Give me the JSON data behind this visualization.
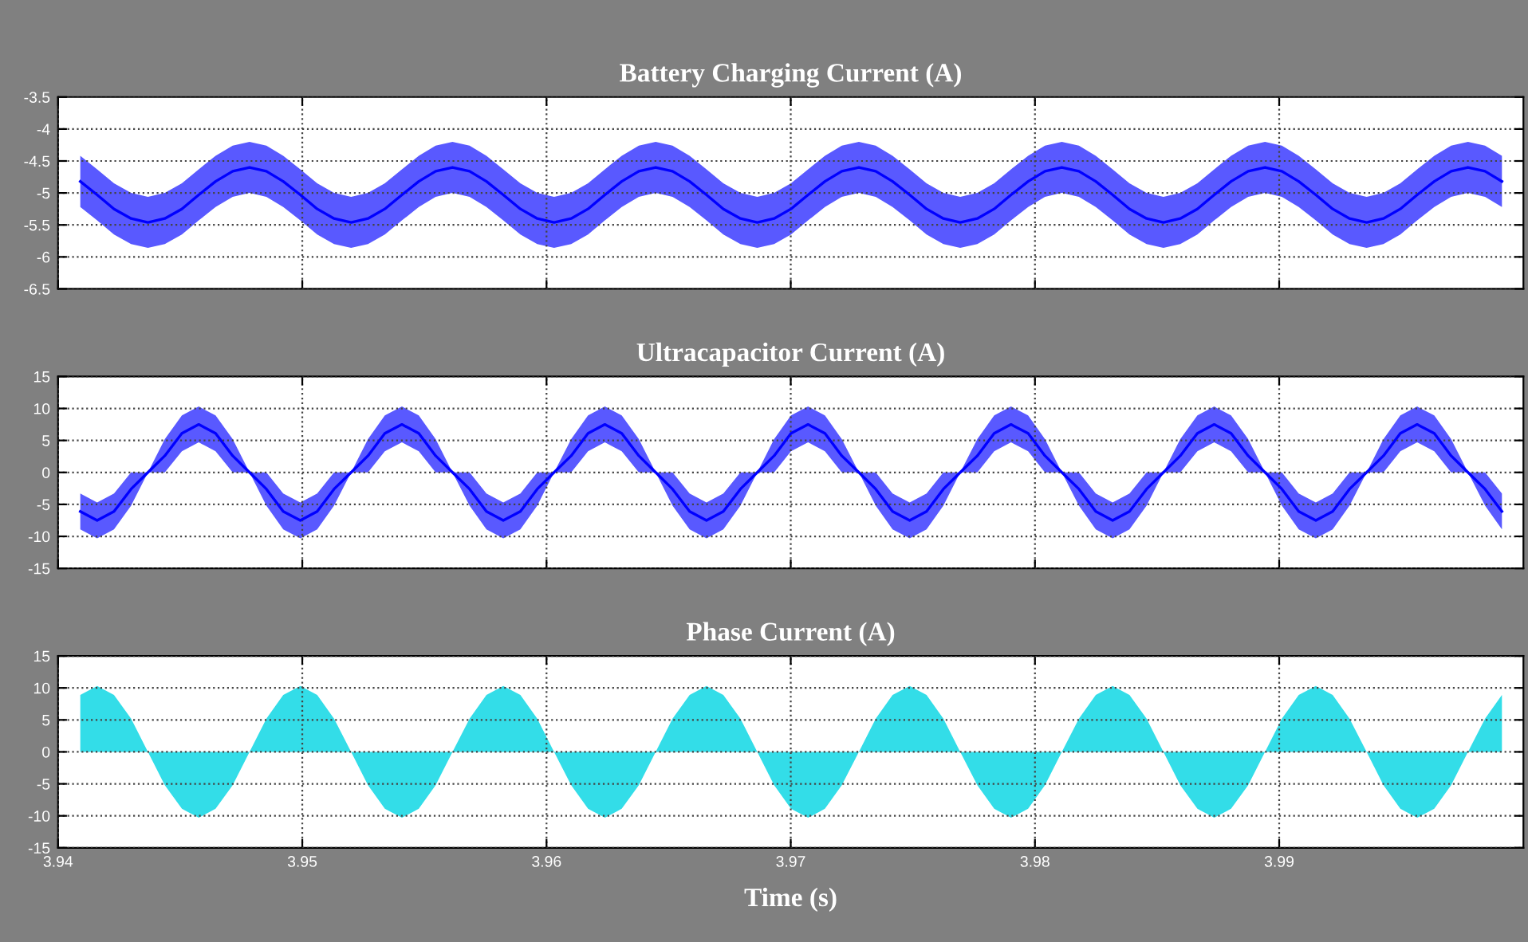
{
  "chart_data": [
    {
      "type": "line",
      "title": "Battery Charging Current (A)",
      "xlim": [
        3.94,
        4.0
      ],
      "xticks": [
        3.94,
        3.95,
        3.96,
        3.97,
        3.98,
        3.99
      ],
      "ylim": [
        -6.5,
        -3.5
      ],
      "yticks": [
        -6.5,
        -6,
        -5.5,
        -5,
        -4.5,
        -4,
        -3.5
      ],
      "grid": true,
      "tick_labels": "y",
      "x": [
        3.94091,
        3.9416,
        3.94229,
        3.94299,
        3.94368,
        3.94437,
        3.94507,
        3.94576,
        3.94645,
        3.94715,
        3.94784,
        3.94853,
        3.94922,
        3.94992,
        3.95061,
        3.9513,
        3.952,
        3.95269,
        3.95338,
        3.95408,
        3.95477,
        3.95546,
        3.95615,
        3.95685,
        3.95754,
        3.95823,
        3.95893,
        3.95962,
        3.96031,
        3.96101,
        3.9617,
        3.96239,
        3.96308,
        3.96378,
        3.96447,
        3.96516,
        3.96586,
        3.96655,
        3.96724,
        3.96794,
        3.96863,
        3.96932,
        3.97001,
        3.97071,
        3.9714,
        3.97209,
        3.97279,
        3.97348,
        3.97417,
        3.97487,
        3.97556,
        3.97625,
        3.97694,
        3.97764,
        3.97833,
        3.97902,
        3.97972,
        3.98041,
        3.9811,
        3.9818,
        3.98249,
        3.98318,
        3.98387,
        3.98457,
        3.98526,
        3.98595,
        3.98665,
        3.98734,
        3.98803,
        3.98873,
        3.98942,
        3.99011,
        3.9908,
        3.9915,
        3.99219,
        3.99288,
        3.99358,
        3.99427,
        3.99496,
        3.99565,
        3.99635,
        3.99704,
        3.99773,
        3.99843,
        3.99912
      ],
      "series": [
        {
          "color": "#0000ff",
          "values": [
            -4.82,
            -5.03,
            -5.25,
            -5.4,
            -5.46,
            -5.4,
            -5.25,
            -5.03,
            -4.82,
            -4.66,
            -4.6,
            -4.66,
            -4.82,
            -5.03,
            -5.25,
            -5.4,
            -5.46,
            -5.4,
            -5.25,
            -5.03,
            -4.82,
            -4.66,
            -4.6,
            -4.66,
            -4.82,
            -5.03,
            -5.25,
            -5.4,
            -5.46,
            -5.4,
            -5.25,
            -5.03,
            -4.82,
            -4.66,
            -4.6,
            -4.66,
            -4.82,
            -5.03,
            -5.25,
            -5.4,
            -5.46,
            -5.4,
            -5.25,
            -5.03,
            -4.82,
            -4.66,
            -4.6,
            -4.66,
            -4.82,
            -5.03,
            -5.25,
            -5.4,
            -5.46,
            -5.4,
            -5.25,
            -5.03,
            -4.82,
            -4.66,
            -4.6,
            -4.66,
            -4.82,
            -5.03,
            -5.25,
            -5.4,
            -5.46,
            -5.4,
            -5.25,
            -5.03,
            -4.82,
            -4.66,
            -4.6,
            -4.66,
            -4.82,
            -5.03,
            -5.25,
            -5.4,
            -5.46,
            -5.4,
            -5.25,
            -5.03,
            -4.82,
            -4.66,
            -4.6,
            -4.66,
            -4.82
          ],
          "lower": [
            -5.22,
            -5.43,
            -5.65,
            -5.8,
            -5.86,
            -5.8,
            -5.65,
            -5.43,
            -5.22,
            -5.06,
            -5,
            -5.06,
            -5.22,
            -5.43,
            -5.65,
            -5.8,
            -5.86,
            -5.8,
            -5.65,
            -5.43,
            -5.22,
            -5.06,
            -5,
            -5.06,
            -5.22,
            -5.43,
            -5.65,
            -5.8,
            -5.86,
            -5.8,
            -5.65,
            -5.43,
            -5.22,
            -5.06,
            -5,
            -5.06,
            -5.22,
            -5.43,
            -5.65,
            -5.8,
            -5.86,
            -5.8,
            -5.65,
            -5.43,
            -5.22,
            -5.06,
            -5,
            -5.06,
            -5.22,
            -5.43,
            -5.65,
            -5.8,
            -5.86,
            -5.8,
            -5.65,
            -5.43,
            -5.22,
            -5.06,
            -5,
            -5.06,
            -5.22,
            -5.43,
            -5.65,
            -5.8,
            -5.86,
            -5.8,
            -5.65,
            -5.43,
            -5.22,
            -5.06,
            -5,
            -5.06,
            -5.22,
            -5.43,
            -5.65,
            -5.8,
            -5.86,
            -5.8,
            -5.65,
            -5.43,
            -5.22,
            -5.06,
            -5,
            -5.06,
            -5.22
          ],
          "upper": [
            -4.42,
            -4.63,
            -4.85,
            -5,
            -5.06,
            -5,
            -4.85,
            -4.63,
            -4.42,
            -4.26,
            -4.2,
            -4.26,
            -4.42,
            -4.63,
            -4.85,
            -5,
            -5.06,
            -5,
            -4.85,
            -4.63,
            -4.42,
            -4.26,
            -4.2,
            -4.26,
            -4.42,
            -4.63,
            -4.85,
            -5,
            -5.06,
            -5,
            -4.85,
            -4.63,
            -4.42,
            -4.26,
            -4.2,
            -4.26,
            -4.42,
            -4.63,
            -4.85,
            -5,
            -5.06,
            -5,
            -4.85,
            -4.63,
            -4.42,
            -4.26,
            -4.2,
            -4.26,
            -4.42,
            -4.63,
            -4.85,
            -5,
            -5.06,
            -5,
            -4.85,
            -4.63,
            -4.42,
            -4.26,
            -4.2,
            -4.26,
            -4.42,
            -4.63,
            -4.85,
            -5,
            -5.06,
            -5,
            -4.85,
            -4.63,
            -4.42,
            -4.26,
            -4.2,
            -4.26,
            -4.42,
            -4.63,
            -4.85,
            -5,
            -5.06,
            -5,
            -4.85,
            -4.63,
            -4.42,
            -4.26,
            -4.2,
            -4.26,
            -4.42
          ]
        }
      ]
    },
    {
      "type": "line",
      "title": "Ultracapacitor Current (A)",
      "xlim": [
        3.94,
        4.0
      ],
      "xticks": [
        3.94,
        3.95,
        3.96,
        3.97,
        3.98,
        3.99
      ],
      "ylim": [
        -15,
        15
      ],
      "yticks": [
        -15,
        -10,
        -5,
        0,
        5,
        10,
        15
      ],
      "grid": true,
      "tick_labels": "y",
      "x": [
        3.94091,
        3.9416,
        3.94229,
        3.94299,
        3.94368,
        3.94437,
        3.94507,
        3.94576,
        3.94645,
        3.94715,
        3.94784,
        3.94853,
        3.94922,
        3.94992,
        3.95061,
        3.9513,
        3.952,
        3.95269,
        3.95338,
        3.95408,
        3.95477,
        3.95546,
        3.95615,
        3.95685,
        3.95754,
        3.95823,
        3.95893,
        3.95962,
        3.96031,
        3.96101,
        3.9617,
        3.96239,
        3.96308,
        3.96378,
        3.96447,
        3.96516,
        3.96586,
        3.96655,
        3.96724,
        3.96794,
        3.96863,
        3.96932,
        3.97001,
        3.97071,
        3.9714,
        3.97209,
        3.97279,
        3.97348,
        3.97417,
        3.97487,
        3.97556,
        3.97625,
        3.97694,
        3.97764,
        3.97833,
        3.97902,
        3.97972,
        3.98041,
        3.9811,
        3.9818,
        3.98249,
        3.98318,
        3.98387,
        3.98457,
        3.98526,
        3.98595,
        3.98665,
        3.98734,
        3.98803,
        3.98873,
        3.98942,
        3.99011,
        3.9908,
        3.9915,
        3.99219,
        3.99288,
        3.99358,
        3.99427,
        3.99496,
        3.99565,
        3.99635,
        3.99704,
        3.99773,
        3.99843,
        3.99912
      ],
      "series": [
        {
          "color": "#0000ff",
          "values": [
            -6.1,
            -7.5,
            -6.1,
            -2.6,
            0,
            2.6,
            6.1,
            7.5,
            6.1,
            2.6,
            0,
            -2.6,
            -6.1,
            -7.5,
            -6.1,
            -2.6,
            0,
            2.6,
            6.1,
            7.5,
            6.1,
            2.6,
            0,
            -2.6,
            -6.1,
            -7.5,
            -6.1,
            -2.6,
            0,
            2.6,
            6.1,
            7.5,
            6.1,
            2.6,
            0,
            -2.6,
            -6.1,
            -7.5,
            -6.1,
            -2.6,
            0,
            2.6,
            6.1,
            7.5,
            6.1,
            2.6,
            0,
            -2.6,
            -6.1,
            -7.5,
            -6.1,
            -2.6,
            0,
            2.6,
            6.1,
            7.5,
            6.1,
            2.6,
            0,
            -2.6,
            -6.1,
            -7.5,
            -6.1,
            -2.6,
            0,
            2.6,
            6.1,
            7.5,
            6.1,
            2.6,
            0,
            -2.6,
            -6.1,
            -7.5,
            -6.1,
            -2.6,
            0,
            2.6,
            6.1,
            7.5,
            6.1,
            2.6,
            0,
            -2.6,
            -6.1
          ],
          "lower": [
            -8.9,
            -10.3,
            -8.9,
            -5.2,
            0,
            0,
            3.3,
            4.7,
            3.3,
            0,
            0,
            -5.2,
            -8.9,
            -10.3,
            -8.9,
            -5.2,
            0,
            0,
            3.3,
            4.7,
            3.3,
            0,
            0,
            -5.2,
            -8.9,
            -10.3,
            -8.9,
            -5.2,
            0,
            0,
            3.3,
            4.7,
            3.3,
            0,
            0,
            -5.2,
            -8.9,
            -10.3,
            -8.9,
            -5.2,
            0,
            0,
            3.3,
            4.7,
            3.3,
            0,
            0,
            -5.2,
            -8.9,
            -10.3,
            -8.9,
            -5.2,
            0,
            0,
            3.3,
            4.7,
            3.3,
            0,
            0,
            -5.2,
            -8.9,
            -10.3,
            -8.9,
            -5.2,
            0,
            0,
            3.3,
            4.7,
            3.3,
            0,
            0,
            -5.2,
            -8.9,
            -10.3,
            -8.9,
            -5.2,
            0,
            0,
            3.3,
            4.7,
            3.3,
            0,
            0,
            -5.2,
            -8.9
          ],
          "upper": [
            -3.3,
            -4.7,
            -3.3,
            0,
            0,
            5.2,
            8.9,
            10.3,
            8.9,
            5.2,
            0,
            0,
            -3.3,
            -4.7,
            -3.3,
            0,
            0,
            5.2,
            8.9,
            10.3,
            8.9,
            5.2,
            0,
            0,
            -3.3,
            -4.7,
            -3.3,
            0,
            0,
            5.2,
            8.9,
            10.3,
            8.9,
            5.2,
            0,
            0,
            -3.3,
            -4.7,
            -3.3,
            0,
            0,
            5.2,
            8.9,
            10.3,
            8.9,
            5.2,
            0,
            0,
            -3.3,
            -4.7,
            -3.3,
            0,
            0,
            5.2,
            8.9,
            10.3,
            8.9,
            5.2,
            0,
            0,
            -3.3,
            -4.7,
            -3.3,
            0,
            0,
            5.2,
            8.9,
            10.3,
            8.9,
            5.2,
            0,
            0,
            -3.3,
            -4.7,
            -3.3,
            0,
            0,
            5.2,
            8.9,
            10.3,
            8.9,
            5.2,
            0,
            0,
            -3.3
          ]
        }
      ]
    },
    {
      "type": "area",
      "title": "Phase Current (A)",
      "xlabel": "Time (s)",
      "xlim": [
        3.94,
        4.0
      ],
      "xticks": [
        3.94,
        3.95,
        3.96,
        3.97,
        3.98,
        3.99
      ],
      "ylim": [
        -15,
        15
      ],
      "yticks": [
        -15,
        -10,
        -5,
        0,
        5,
        10,
        15
      ],
      "grid": true,
      "x": [
        3.94091,
        3.9416,
        3.94229,
        3.94299,
        3.94368,
        3.94437,
        3.94507,
        3.94576,
        3.94645,
        3.94715,
        3.94784,
        3.94853,
        3.94922,
        3.94992,
        3.95061,
        3.9513,
        3.952,
        3.95269,
        3.95338,
        3.95408,
        3.95477,
        3.95546,
        3.95615,
        3.95685,
        3.95754,
        3.95823,
        3.95893,
        3.95962,
        3.96031,
        3.96101,
        3.9617,
        3.96239,
        3.96308,
        3.96378,
        3.96447,
        3.96516,
        3.96586,
        3.96655,
        3.96724,
        3.96794,
        3.96863,
        3.96932,
        3.97001,
        3.97071,
        3.9714,
        3.97209,
        3.97279,
        3.97348,
        3.97417,
        3.97487,
        3.97556,
        3.97625,
        3.97694,
        3.97764,
        3.97833,
        3.97902,
        3.97972,
        3.98041,
        3.9811,
        3.9818,
        3.98249,
        3.98318,
        3.98387,
        3.98457,
        3.98526,
        3.98595,
        3.98665,
        3.98734,
        3.98803,
        3.98873,
        3.98942,
        3.99011,
        3.9908,
        3.9915,
        3.99219,
        3.99288,
        3.99358,
        3.99427,
        3.99496,
        3.99565,
        3.99635,
        3.99704,
        3.99773,
        3.99843,
        3.99912
      ],
      "series": [
        {
          "color": "#33dde8",
          "values": [
            8.9,
            10.3,
            8.9,
            5.2,
            0,
            -5.2,
            -8.9,
            -10.3,
            -8.9,
            -5.2,
            0,
            5.2,
            8.9,
            10.3,
            8.9,
            5.2,
            0,
            -5.2,
            -8.9,
            -10.3,
            -8.9,
            -5.2,
            0,
            5.2,
            8.9,
            10.3,
            8.9,
            5.2,
            0,
            -5.2,
            -8.9,
            -10.3,
            -8.9,
            -5.2,
            0,
            5.2,
            8.9,
            10.3,
            8.9,
            5.2,
            0,
            -5.2,
            -8.9,
            -10.3,
            -8.9,
            -5.2,
            0,
            5.2,
            8.9,
            10.3,
            8.9,
            5.2,
            0,
            -5.2,
            -8.9,
            -10.3,
            -8.9,
            -5.2,
            0,
            5.2,
            8.9,
            10.3,
            8.9,
            5.2,
            0,
            -5.2,
            -8.9,
            -10.3,
            -8.9,
            -5.2,
            0,
            5.2,
            8.9,
            10.3,
            8.9,
            5.2,
            0,
            -5.2,
            -8.9,
            -10.3,
            -8.9,
            -5.2,
            0,
            5.2,
            8.9
          ]
        }
      ]
    }
  ]
}
